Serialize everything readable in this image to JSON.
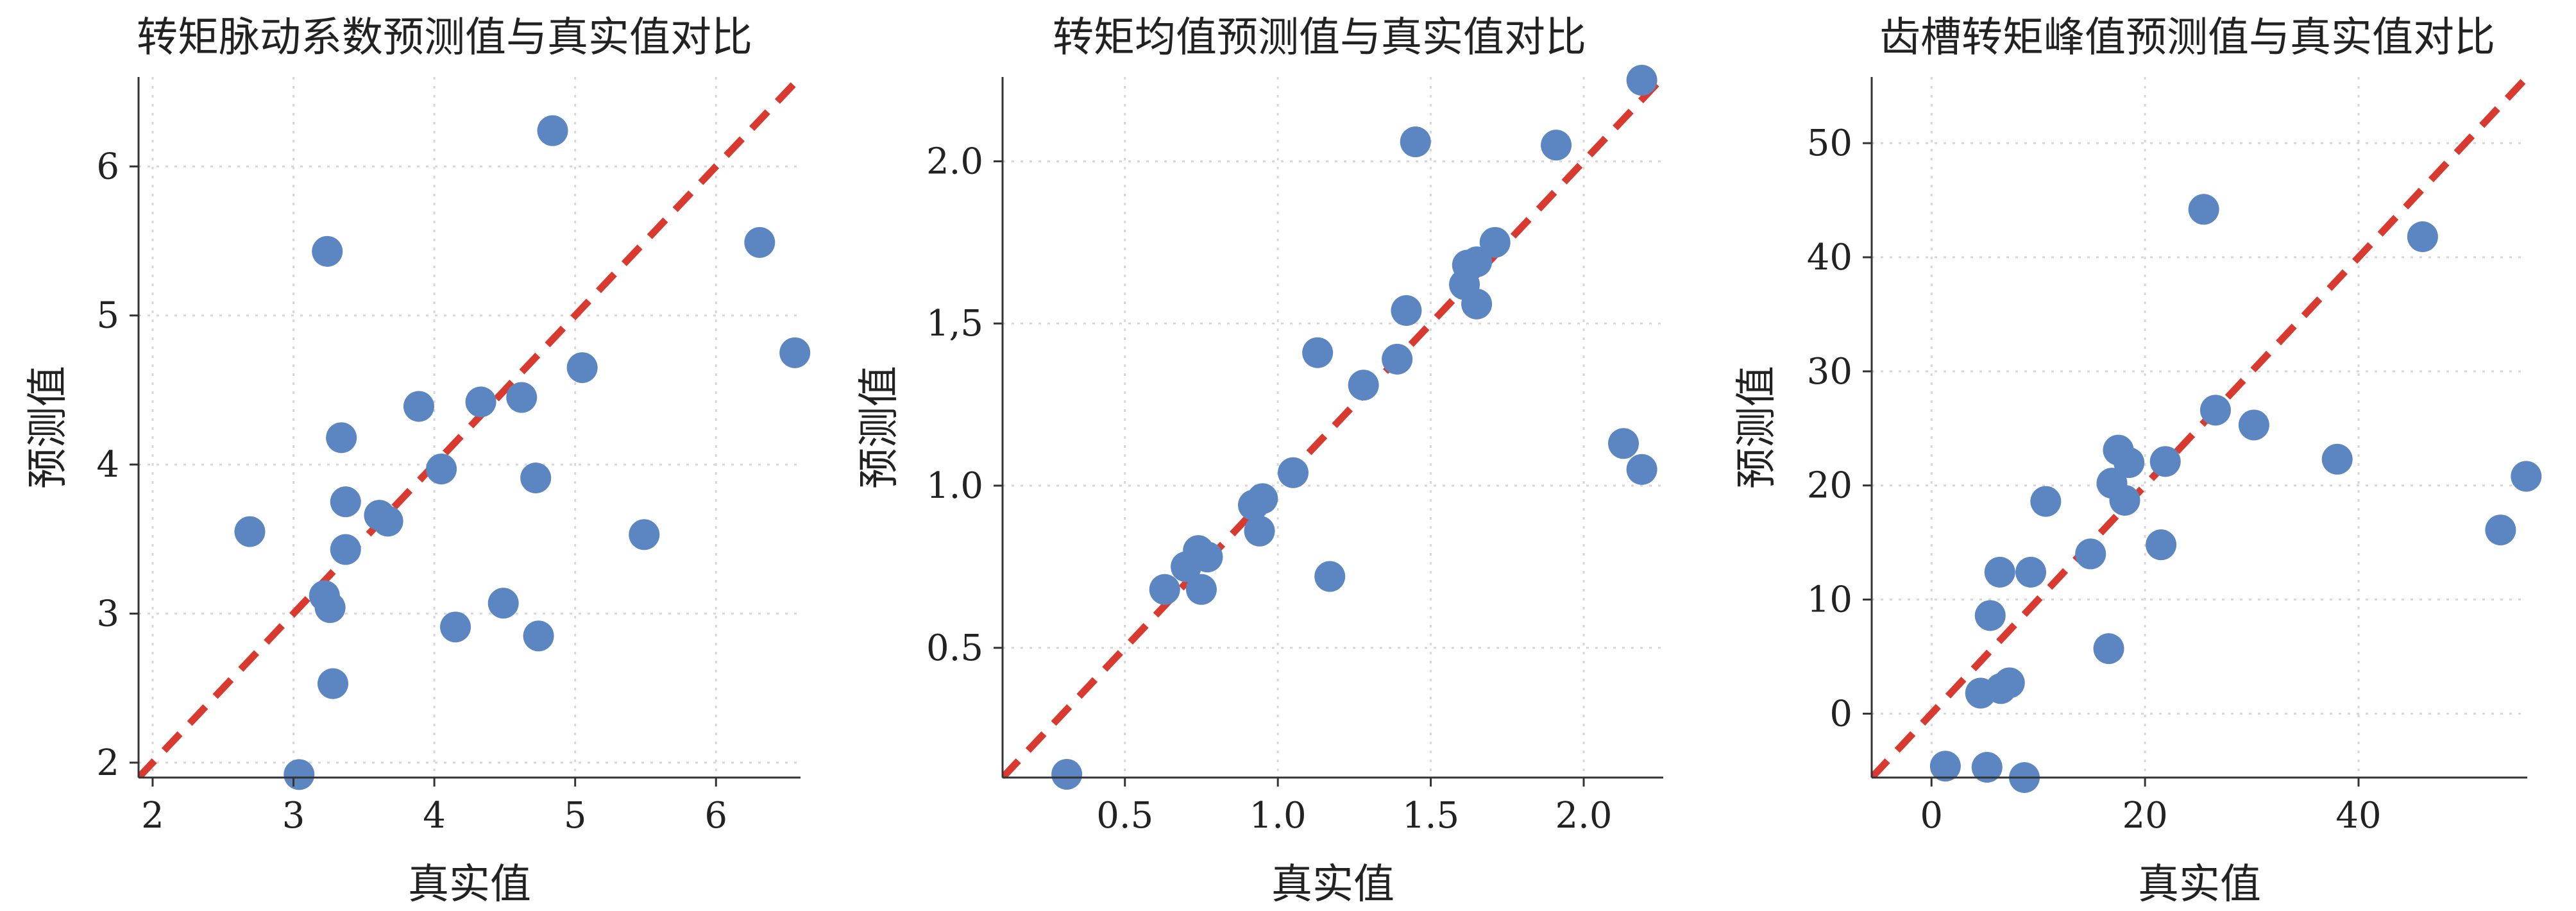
{
  "colors": {
    "point": "#5b86c2",
    "diagonal": "#d93a2f",
    "axis": "#333333",
    "grid": "#d7d7d7"
  },
  "chart_data": [
    {
      "type": "scatter",
      "title": "转矩脉动系数预测值与真实值对比",
      "xlabel": "真实值",
      "ylabel": "预测值",
      "xlim": [
        1.9,
        6.6
      ],
      "ylim": [
        1.9,
        6.6
      ],
      "xticks": [
        "2",
        "3",
        "4",
        "5",
        "6"
      ],
      "xtick_values": [
        2,
        3,
        4,
        5,
        6
      ],
      "yticks": [
        "2",
        "3",
        "4",
        "5",
        "6"
      ],
      "ytick_values": [
        2,
        3,
        4,
        5,
        6
      ],
      "grid": true,
      "reference_line": "y = x",
      "points": [
        {
          "x": 2.69,
          "y": 3.55
        },
        {
          "x": 3.04,
          "y": 1.92
        },
        {
          "x": 3.22,
          "y": 3.12
        },
        {
          "x": 3.26,
          "y": 3.04
        },
        {
          "x": 3.24,
          "y": 5.43
        },
        {
          "x": 3.28,
          "y": 2.53
        },
        {
          "x": 3.34,
          "y": 4.18
        },
        {
          "x": 3.37,
          "y": 3.75
        },
        {
          "x": 3.37,
          "y": 3.43
        },
        {
          "x": 3.61,
          "y": 3.66
        },
        {
          "x": 3.67,
          "y": 3.62
        },
        {
          "x": 3.89,
          "y": 4.39
        },
        {
          "x": 4.05,
          "y": 3.97
        },
        {
          "x": 4.15,
          "y": 2.91
        },
        {
          "x": 4.33,
          "y": 4.42
        },
        {
          "x": 4.49,
          "y": 3.07
        },
        {
          "x": 4.62,
          "y": 4.45
        },
        {
          "x": 4.72,
          "y": 3.91
        },
        {
          "x": 4.74,
          "y": 2.85
        },
        {
          "x": 4.84,
          "y": 6.24
        },
        {
          "x": 5.05,
          "y": 4.65
        },
        {
          "x": 5.49,
          "y": 3.53
        },
        {
          "x": 6.31,
          "y": 5.49
        },
        {
          "x": 6.56,
          "y": 4.75
        }
      ]
    },
    {
      "type": "scatter",
      "title": "转矩均值预测值与真实值对比",
      "xlabel": "真实值",
      "ylabel": "预测值",
      "xlim": [
        0.1,
        2.26
      ],
      "ylim": [
        0.1,
        2.26
      ],
      "xticks": [
        "0.5",
        "1.0",
        "1.5",
        "2.0"
      ],
      "xtick_values": [
        0.5,
        1.0,
        1.5,
        2.0
      ],
      "yticks": [
        "0.5",
        "1.0",
        "1,5",
        "2.0"
      ],
      "ytick_values": [
        0.5,
        1.0,
        1.5,
        2.0
      ],
      "grid": true,
      "reference_line": "y = x",
      "points": [
        {
          "x": 0.31,
          "y": 0.11
        },
        {
          "x": 0.63,
          "y": 0.68
        },
        {
          "x": 0.7,
          "y": 0.75
        },
        {
          "x": 0.75,
          "y": 0.68
        },
        {
          "x": 0.74,
          "y": 0.8
        },
        {
          "x": 0.77,
          "y": 0.78
        },
        {
          "x": 0.92,
          "y": 0.94
        },
        {
          "x": 0.94,
          "y": 0.86
        },
        {
          "x": 0.95,
          "y": 0.96
        },
        {
          "x": 1.05,
          "y": 1.04
        },
        {
          "x": 1.13,
          "y": 1.41
        },
        {
          "x": 1.17,
          "y": 0.72
        },
        {
          "x": 1.28,
          "y": 1.31
        },
        {
          "x": 1.39,
          "y": 1.39
        },
        {
          "x": 1.42,
          "y": 1.54
        },
        {
          "x": 1.45,
          "y": 2.06
        },
        {
          "x": 1.61,
          "y": 1.62
        },
        {
          "x": 1.62,
          "y": 1.68
        },
        {
          "x": 1.65,
          "y": 1.69
        },
        {
          "x": 1.65,
          "y": 1.56
        },
        {
          "x": 1.71,
          "y": 1.75
        },
        {
          "x": 1.91,
          "y": 2.05
        },
        {
          "x": 2.13,
          "y": 1.13
        },
        {
          "x": 2.19,
          "y": 1.05
        },
        {
          "x": 2.19,
          "y": 2.25
        }
      ]
    },
    {
      "type": "scatter",
      "title": "齿槽转矩峰值预测值与真实值对比",
      "xlabel": "真实值",
      "ylabel": "预测值",
      "xlim": [
        -5.6,
        55.8
      ],
      "ylim": [
        -5.6,
        55.8
      ],
      "xticks": [
        "0",
        "20",
        "40"
      ],
      "xtick_values": [
        0,
        20,
        40
      ],
      "yticks": [
        "0",
        "10",
        "20",
        "30",
        "40",
        "50"
      ],
      "ytick_values": [
        0,
        10,
        20,
        30,
        40,
        50
      ],
      "grid": true,
      "reference_line": "y = x",
      "points": [
        {
          "x": 1.3,
          "y": -4.6
        },
        {
          "x": 4.6,
          "y": 1.8
        },
        {
          "x": 5.2,
          "y": -4.7
        },
        {
          "x": 5.5,
          "y": 8.6
        },
        {
          "x": 6.4,
          "y": 12.4
        },
        {
          "x": 6.5,
          "y": 2.2
        },
        {
          "x": 7.3,
          "y": 2.7
        },
        {
          "x": 8.7,
          "y": -5.6
        },
        {
          "x": 9.3,
          "y": 12.4
        },
        {
          "x": 10.7,
          "y": 18.6
        },
        {
          "x": 14.9,
          "y": 14.0
        },
        {
          "x": 16.6,
          "y": 5.7
        },
        {
          "x": 16.9,
          "y": 20.2
        },
        {
          "x": 17.5,
          "y": 23.1
        },
        {
          "x": 18.1,
          "y": 18.7
        },
        {
          "x": 18.5,
          "y": 22.0
        },
        {
          "x": 21.5,
          "y": 14.8
        },
        {
          "x": 21.9,
          "y": 22.1
        },
        {
          "x": 25.5,
          "y": 44.2
        },
        {
          "x": 26.6,
          "y": 26.6
        },
        {
          "x": 30.2,
          "y": 25.3
        },
        {
          "x": 38.0,
          "y": 22.3
        },
        {
          "x": 46.0,
          "y": 41.8
        },
        {
          "x": 53.3,
          "y": 16.1
        },
        {
          "x": 55.7,
          "y": 20.8
        }
      ]
    }
  ]
}
